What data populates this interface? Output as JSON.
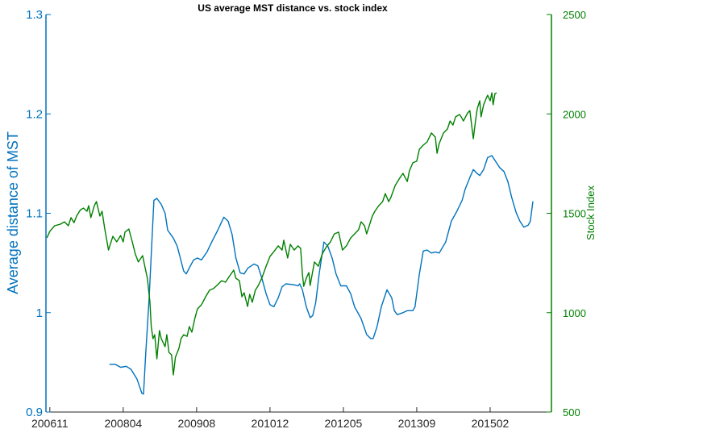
{
  "chart_data": {
    "type": "line",
    "title": "US average MST distance vs. stock index",
    "xlabel": "",
    "x_units": "months since 200611",
    "xlim": [
      -0.9,
      116.2
    ],
    "x_ticks": [
      0,
      17,
      34,
      51,
      68,
      85,
      102
    ],
    "x_tick_labels": [
      "200611",
      "200804",
      "200908",
      "201012",
      "201205",
      "201309",
      "201502"
    ],
    "y_left": {
      "label": "Average distance of MST",
      "lim": [
        0.9,
        1.3
      ],
      "ticks": [
        0.9,
        1,
        1.1,
        1.2,
        1.3
      ],
      "tick_labels": [
        "0.9",
        "1",
        "1.1",
        "1.2",
        "1.3"
      ],
      "color": "#0072BD"
    },
    "y_right": {
      "label": "Stock Index",
      "lim": [
        500,
        2500
      ],
      "ticks": [
        500,
        1000,
        1500,
        2000,
        2500
      ],
      "tick_labels": [
        "500",
        "1000",
        "1500",
        "2000",
        "2500"
      ],
      "color": "#008000"
    },
    "grid": false,
    "series": [
      {
        "name": "Average distance of MST",
        "axis": "left",
        "color": "#0072BD",
        "x": [
          13.8,
          15.1,
          16.4,
          17.7,
          18.8,
          20.2,
          21.3,
          21.7,
          22.2,
          23.0,
          24.1,
          24.8,
          25.8,
          26.7,
          27.3,
          28.6,
          29.5,
          31.0,
          31.6,
          32.3,
          33.3,
          34.2,
          35.1,
          36.4,
          37.5,
          38.9,
          40.3,
          41.3,
          42.2,
          43.1,
          44.1,
          45.0,
          45.9,
          47.3,
          48.2,
          49.1,
          50.1,
          51.0,
          51.9,
          52.9,
          53.8,
          54.7,
          56.6,
          57.5,
          57.9,
          58.5,
          59.4,
          60.3,
          60.9,
          61.6,
          62.4,
          63.5,
          64.4,
          65.4,
          66.3,
          67.4,
          68.7,
          69.7,
          70.6,
          72.1,
          73.4,
          74.3,
          74.9,
          75.8,
          76.8,
          78.1,
          79.2,
          79.8,
          80.5,
          81.8,
          82.8,
          84.1,
          84.6,
          85.6,
          86.5,
          87.4,
          88.4,
          89.3,
          90.2,
          91.7,
          93.0,
          94.3,
          95.5,
          96.2,
          97.3,
          98.1,
          99.0,
          99.6,
          100.5,
          101.4,
          102.4,
          103.3,
          104.2,
          105.2,
          106.1,
          107.0,
          108.0,
          108.9,
          109.8,
          110.8,
          111.3,
          111.9
        ],
        "y": [
          0.948,
          0.948,
          0.945,
          0.946,
          0.943,
          0.933,
          0.919,
          0.918,
          0.958,
          1.015,
          1.113,
          1.115,
          1.109,
          1.1,
          1.083,
          1.075,
          1.067,
          1.042,
          1.039,
          1.045,
          1.053,
          1.055,
          1.053,
          1.061,
          1.071,
          1.083,
          1.096,
          1.092,
          1.079,
          1.055,
          1.04,
          1.039,
          1.045,
          1.049,
          1.047,
          1.035,
          1.019,
          1.008,
          1.006,
          1.015,
          1.026,
          1.029,
          1.028,
          1.027,
          1.029,
          1.023,
          1.006,
          0.995,
          0.997,
          1.01,
          1.039,
          1.071,
          1.067,
          1.055,
          1.039,
          1.027,
          1.027,
          1.019,
          1.006,
          0.994,
          0.978,
          0.974,
          0.974,
          0.986,
          1.006,
          1.023,
          1.015,
          1.002,
          0.998,
          1.0,
          1.002,
          1.002,
          1.006,
          1.039,
          1.062,
          1.063,
          1.06,
          1.061,
          1.06,
          1.071,
          1.092,
          1.102,
          1.113,
          1.124,
          1.136,
          1.144,
          1.14,
          1.138,
          1.144,
          1.156,
          1.158,
          1.152,
          1.146,
          1.142,
          1.132,
          1.116,
          1.101,
          1.092,
          1.086,
          1.088,
          1.092,
          1.112
        ]
      },
      {
        "name": "Stock Index",
        "axis": "right",
        "color": "#008000",
        "x": [
          -0.7,
          0,
          1.1,
          2.4,
          3.4,
          4.3,
          4.9,
          5.6,
          6.2,
          7.1,
          7.8,
          8.6,
          9.0,
          9.5,
          10.3,
          10.8,
          11.6,
          12.1,
          12.7,
          13.6,
          14.6,
          15.5,
          16.4,
          17.0,
          17.4,
          18.3,
          19.1,
          19.8,
          20.5,
          21.5,
          22.0,
          22.6,
          23.2,
          23.5,
          23.9,
          24.3,
          24.8,
          25.4,
          25.8,
          26.7,
          27.1,
          27.6,
          28.2,
          28.6,
          29.1,
          29.9,
          30.4,
          31.0,
          31.8,
          32.3,
          32.9,
          33.6,
          34.2,
          35.1,
          36.1,
          37.0,
          37.9,
          38.9,
          39.8,
          40.7,
          41.7,
          42.6,
          43.1,
          43.9,
          44.5,
          45.0,
          45.8,
          46.3,
          46.9,
          47.6,
          48.2,
          49.1,
          50.1,
          51.0,
          51.9,
          52.9,
          53.8,
          54.2,
          55.1,
          55.7,
          56.6,
          57.5,
          58.1,
          58.5,
          58.8,
          59.4,
          60.0,
          60.3,
          61.3,
          62.2,
          63.1,
          64.1,
          65.0,
          65.9,
          66.9,
          67.8,
          68.7,
          69.7,
          70.6,
          71.5,
          72.1,
          72.9,
          73.4,
          74.0,
          74.7,
          75.3,
          76.2,
          77.1,
          77.7,
          78.5,
          79.0,
          80.0,
          80.9,
          81.8,
          82.8,
          83.3,
          84.1,
          85.0,
          85.6,
          86.5,
          87.4,
          88.4,
          89.3,
          89.7,
          90.2,
          91.2,
          92.1,
          92.7,
          93.4,
          94.0,
          94.9,
          95.3,
          95.8,
          96.8,
          97.3,
          98.1,
          98.6,
          99.0,
          99.6,
          99.9,
          100.5,
          101.1,
          101.4,
          102.0,
          102.4,
          102.7,
          103.1,
          103.5
        ],
        "y": [
          1376,
          1409,
          1437,
          1445,
          1457,
          1437,
          1478,
          1453,
          1486,
          1518,
          1526,
          1510,
          1538,
          1478,
          1538,
          1559,
          1486,
          1510,
          1425,
          1315,
          1384,
          1356,
          1388,
          1356,
          1405,
          1421,
          1356,
          1295,
          1255,
          1287,
          1234,
          1173,
          1052,
          930,
          869,
          889,
          768,
          910,
          869,
          829,
          889,
          800,
          788,
          687,
          776,
          820,
          869,
          889,
          881,
          930,
          902,
          971,
          1019,
          1039,
          1080,
          1113,
          1121,
          1141,
          1161,
          1153,
          1186,
          1214,
          1173,
          1161,
          1080,
          1100,
          1031,
          1092,
          1052,
          1113,
          1133,
          1173,
          1234,
          1283,
          1307,
          1336,
          1315,
          1364,
          1275,
          1344,
          1315,
          1336,
          1323,
          1194,
          1133,
          1173,
          1202,
          1137,
          1255,
          1234,
          1295,
          1332,
          1356,
          1396,
          1405,
          1315,
          1336,
          1376,
          1396,
          1417,
          1457,
          1437,
          1396,
          1437,
          1486,
          1510,
          1538,
          1559,
          1599,
          1559,
          1579,
          1640,
          1672,
          1701,
          1660,
          1713,
          1754,
          1762,
          1822,
          1843,
          1859,
          1904,
          1883,
          1802,
          1851,
          1904,
          1924,
          1964,
          1944,
          1985,
          1997,
          1985,
          1964,
          2005,
          2017,
          1875,
          1964,
          2025,
          2066,
          1985,
          2046,
          2078,
          2094,
          2066,
          2106,
          2046,
          2102,
          2106
        ]
      }
    ]
  }
}
